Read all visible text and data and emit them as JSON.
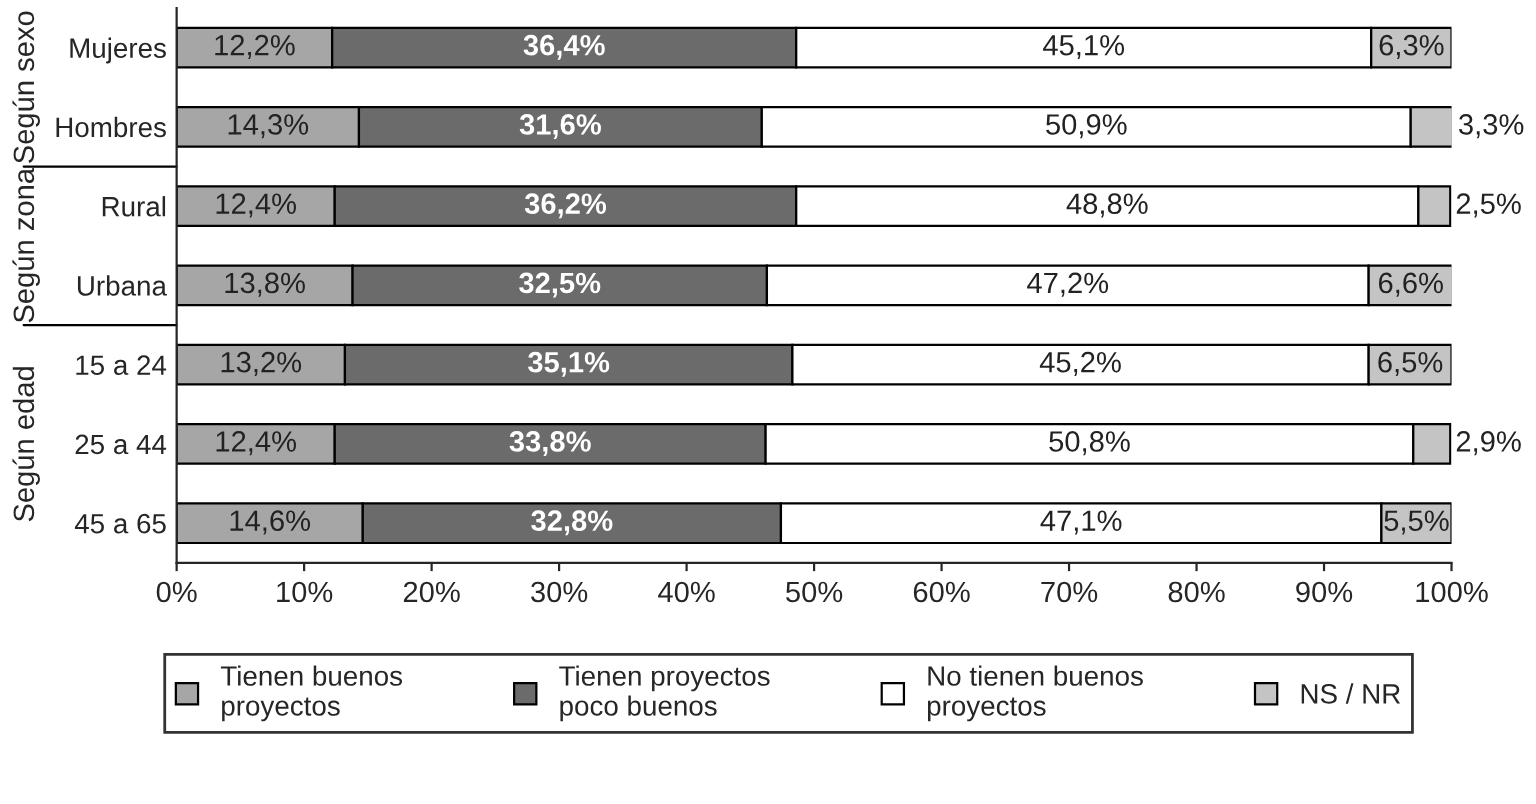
{
  "chart_data": {
    "type": "bar",
    "orientation": "horizontal",
    "stacked": true,
    "categories": [
      "Mujeres",
      "Hombres",
      "Rural",
      "Urbana",
      "15 a 24",
      "25 a 44",
      "45 a 65"
    ],
    "series": [
      {
        "name": "Tienen buenos proyectos",
        "color": "#a6a6a6",
        "values": [
          12.2,
          14.3,
          12.4,
          13.8,
          13.2,
          12.4,
          14.6
        ],
        "value_labels": [
          "12,2%",
          "14,3%",
          "12,4%",
          "13,8%",
          "13,2%",
          "12,4%",
          "14,6%"
        ]
      },
      {
        "name": "Tienen proyectos poco buenos",
        "color": "#6b6b6b",
        "values": [
          36.4,
          31.6,
          36.2,
          32.5,
          35.1,
          33.8,
          32.8
        ],
        "value_labels": [
          "36,4%",
          "31,6%",
          "36,2%",
          "32,5%",
          "35,1%",
          "33,8%",
          "32,8%"
        ]
      },
      {
        "name": "No tienen buenos proyectos",
        "color": "#ffffff",
        "values": [
          45.1,
          50.9,
          48.8,
          47.2,
          45.2,
          50.8,
          47.1
        ],
        "value_labels": [
          "45,1%",
          "50,9%",
          "48,8%",
          "47,2%",
          "45,2%",
          "50,8%",
          "47,1%"
        ]
      },
      {
        "name": "NS / NR",
        "color": "#c4c4c4",
        "values": [
          6.3,
          3.3,
          2.5,
          6.6,
          6.5,
          2.9,
          5.5
        ],
        "value_labels": [
          "6,3%",
          "3,3%",
          "2,5%",
          "6,6%",
          "6,5%",
          "2,9%",
          "5,5%"
        ]
      }
    ],
    "xlim": [
      0,
      100
    ],
    "xticks": [
      {
        "value": 0,
        "label": "0%"
      },
      {
        "value": 10,
        "label": "10%"
      },
      {
        "value": 20,
        "label": "20%"
      },
      {
        "value": 30,
        "label": "30%"
      },
      {
        "value": 40,
        "label": "40%"
      },
      {
        "value": 50,
        "label": "50%"
      },
      {
        "value": 60,
        "label": "60%"
      },
      {
        "value": 70,
        "label": "70%"
      },
      {
        "value": 80,
        "label": "80%"
      },
      {
        "value": 90,
        "label": "90%"
      },
      {
        "value": 100,
        "label": "100%"
      }
    ],
    "annotations": [
      "Según sexo",
      "Según zona",
      "Según edad"
    ],
    "grid": false,
    "legend": "bottom"
  }
}
